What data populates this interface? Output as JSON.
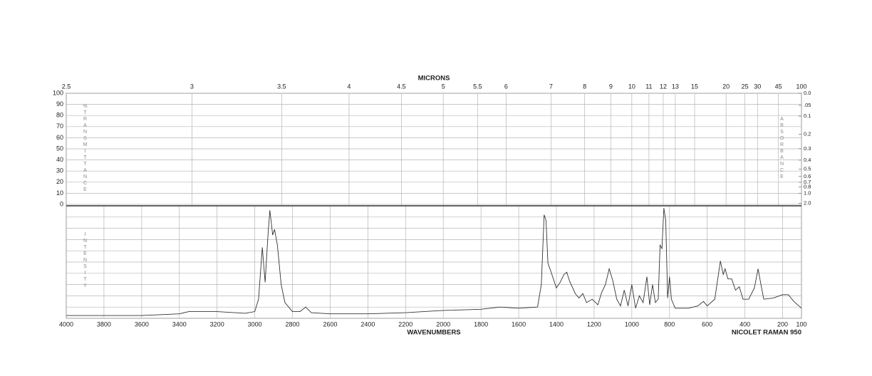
{
  "chart_data": {
    "type": "line",
    "x2label": "MICRONS",
    "xlabel": "WAVENUMBERS",
    "footer": "NICOLET RAMAN 950",
    "ylabel": "%TRANSMITTANCE",
    "y2label": "ABSORBANCE",
    "intensity_label": "INTENSITY",
    "xlim": [
      4000,
      100
    ],
    "xticks": [
      4000,
      3800,
      3600,
      3400,
      3200,
      3000,
      2800,
      2600,
      2400,
      2200,
      2000,
      1800,
      1600,
      1400,
      1200,
      1000,
      800,
      600,
      400,
      200,
      100
    ],
    "x2ticks": [
      2.5,
      3,
      3.5,
      4,
      4.5,
      5,
      5.5,
      6,
      7,
      8,
      9,
      10,
      11,
      12,
      13,
      15,
      20,
      25,
      30,
      45,
      100
    ],
    "ylim": [
      0,
      100
    ],
    "yticks": [
      0,
      10,
      20,
      30,
      40,
      50,
      60,
      70,
      80,
      90,
      100
    ],
    "y2ticks": [
      {
        "value": 0.0,
        "label": "0.0"
      },
      {
        "value": 0.05,
        "label": ".05"
      },
      {
        "value": 0.1,
        "label": "0.1"
      },
      {
        "value": 0.2,
        "label": "0.2"
      },
      {
        "value": 0.3,
        "label": "0.3"
      },
      {
        "value": 0.4,
        "label": "0.4"
      },
      {
        "value": 0.5,
        "label": "0.5"
      },
      {
        "value": 0.6,
        "label": "0.6"
      },
      {
        "value": 0.7,
        "label": "0.7"
      },
      {
        "value": 0.8,
        "label": "0.8"
      },
      {
        "value": 1.0,
        "label": "1.0"
      },
      {
        "value": 2.0,
        "label": "2.0"
      }
    ],
    "intensity_lim": [
      0,
      100
    ],
    "grid": true,
    "x": [
      4000,
      3600,
      3400,
      3350,
      3200,
      3050,
      3000,
      2980,
      2960,
      2945,
      2930,
      2920,
      2905,
      2895,
      2880,
      2860,
      2840,
      2800,
      2760,
      2730,
      2700,
      2600,
      2400,
      2200,
      2000,
      1800,
      1700,
      1600,
      1500,
      1480,
      1465,
      1455,
      1445,
      1430,
      1400,
      1380,
      1360,
      1345,
      1330,
      1300,
      1280,
      1260,
      1240,
      1210,
      1180,
      1160,
      1140,
      1120,
      1100,
      1080,
      1060,
      1040,
      1020,
      1000,
      980,
      960,
      940,
      920,
      905,
      890,
      875,
      860,
      850,
      840,
      830,
      820,
      810,
      800,
      790,
      770,
      700,
      650,
      620,
      600,
      560,
      530,
      515,
      505,
      490,
      470,
      450,
      430,
      410,
      380,
      350,
      330,
      315,
      300,
      250,
      200,
      170,
      140,
      100
    ],
    "series": [
      {
        "color": "#333333",
        "values": [
          2.5,
          2.5,
          4,
          6,
          6,
          4.5,
          6,
          17,
          63,
          32,
          74,
          96,
          74,
          79,
          65,
          30,
          14,
          6,
          6,
          10,
          5,
          4,
          4,
          5,
          7,
          8,
          10,
          9,
          10,
          30,
          92,
          87,
          49,
          42,
          27,
          32,
          39,
          41,
          33,
          22,
          18,
          22,
          14,
          17,
          12,
          23,
          30,
          44,
          33,
          17,
          11,
          25,
          11,
          30,
          9,
          20,
          14,
          37,
          12,
          30,
          14,
          17,
          65,
          62,
          98,
          87,
          18,
          37,
          17,
          9,
          9,
          11,
          15,
          11,
          17,
          51,
          39,
          44,
          35,
          35,
          25,
          28,
          17,
          17,
          27,
          44,
          30,
          17,
          18,
          21,
          21,
          15,
          9
        ]
      }
    ]
  }
}
